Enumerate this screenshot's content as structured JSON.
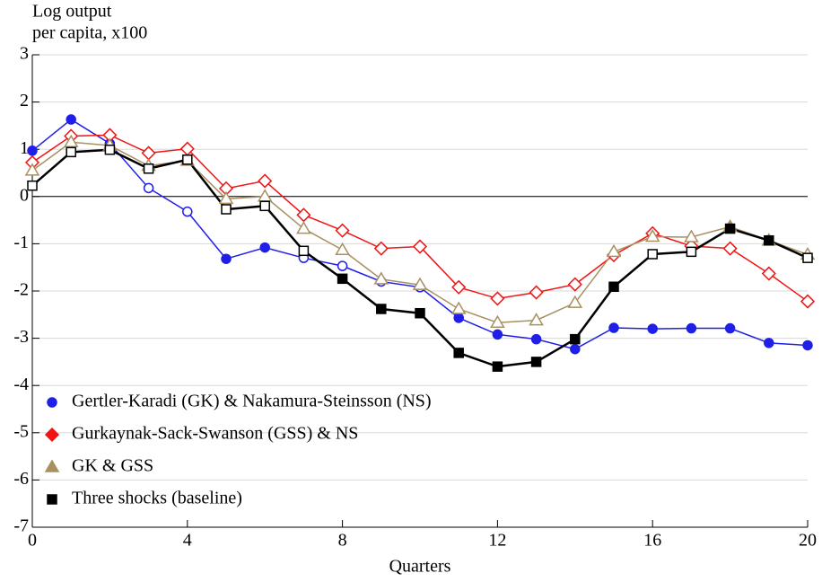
{
  "chart_data": {
    "type": "line",
    "ylabel": [
      "Log output",
      "per capita, x100"
    ],
    "xlabel": "Quarters",
    "x": [
      0,
      1,
      2,
      3,
      4,
      5,
      6,
      7,
      8,
      9,
      10,
      11,
      12,
      13,
      14,
      15,
      16,
      17,
      18,
      19,
      20
    ],
    "xlim": [
      0,
      20
    ],
    "xticks": [
      0,
      4,
      8,
      12,
      16,
      20
    ],
    "ylim": [
      -7,
      3
    ],
    "yticks": [
      -7,
      -6,
      -5,
      -4,
      -3,
      -2,
      -1,
      0,
      1,
      2,
      3
    ],
    "grid": true,
    "legend": "lower left",
    "series": [
      {
        "name": "Gertler-Karadi (GK) & Nakamura-Steinsson (NS)",
        "color": "#1f1fe8",
        "marker": "circle",
        "values": [
          0.97,
          1.63,
          1.12,
          0.18,
          -0.32,
          -1.32,
          -1.08,
          -1.3,
          -1.47,
          -1.8,
          -1.92,
          -2.57,
          -2.92,
          -3.02,
          -3.23,
          -2.78,
          -2.8,
          -2.79,
          -2.79,
          -3.1,
          -3.15
        ],
        "marker_filled": [
          true,
          true,
          true,
          false,
          false,
          true,
          true,
          false,
          false,
          false,
          false,
          true,
          true,
          true,
          true,
          true,
          true,
          true,
          true,
          true,
          true
        ]
      },
      {
        "name": "Gurkaynak-Sack-Swanson (GSS) & NS",
        "color": "#f01414",
        "marker": "diamond",
        "values": [
          0.72,
          1.28,
          1.3,
          0.92,
          1.01,
          0.17,
          0.33,
          -0.39,
          -0.72,
          -1.1,
          -1.06,
          -1.92,
          -2.16,
          -2.03,
          -1.86,
          -1.24,
          -0.78,
          -1.05,
          -1.1,
          -1.63,
          -2.22
        ],
        "marker_filled": [
          false,
          false,
          false,
          false,
          false,
          false,
          false,
          false,
          false,
          false,
          false,
          false,
          false,
          false,
          false,
          false,
          false,
          false,
          false,
          false,
          false
        ]
      },
      {
        "name": "GK & GSS",
        "color": "#a89060",
        "marker": "triangle",
        "values": [
          0.55,
          1.15,
          1.08,
          0.65,
          0.76,
          -0.05,
          0.0,
          -0.68,
          -1.13,
          -1.75,
          -1.87,
          -2.38,
          -2.67,
          -2.62,
          -2.25,
          -1.17,
          -0.85,
          -0.86,
          -0.64,
          -0.93,
          -1.23
        ],
        "marker_filled": [
          false,
          false,
          false,
          false,
          false,
          false,
          false,
          false,
          false,
          false,
          false,
          false,
          false,
          false,
          false,
          false,
          false,
          false,
          true,
          false,
          false
        ]
      },
      {
        "name": "Three shocks (baseline)",
        "color": "#000000",
        "marker": "square",
        "values": [
          0.23,
          0.94,
          0.99,
          0.59,
          0.78,
          -0.27,
          -0.2,
          -1.15,
          -1.74,
          -2.38,
          -2.47,
          -3.31,
          -3.6,
          -3.5,
          -3.02,
          -1.91,
          -1.22,
          -1.17,
          -0.68,
          -0.93,
          -1.3
        ],
        "marker_filled": [
          false,
          false,
          false,
          false,
          false,
          false,
          false,
          false,
          true,
          true,
          true,
          true,
          true,
          true,
          true,
          true,
          false,
          false,
          true,
          true,
          false
        ]
      }
    ]
  }
}
